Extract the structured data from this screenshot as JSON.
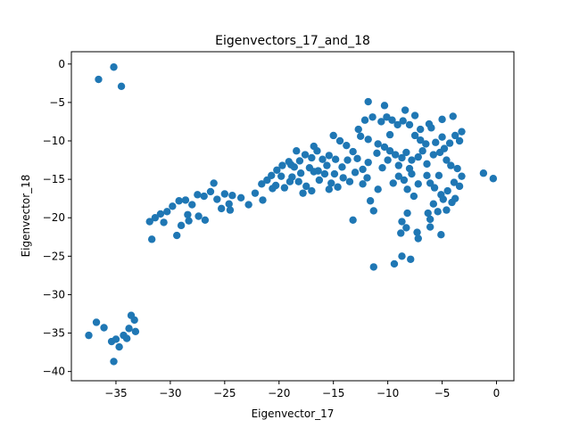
{
  "chart_data": {
    "type": "scatter",
    "title": "Eigenvectors_17_and_18",
    "xlabel": "Eigenvector_17",
    "ylabel": "Eigenvector_18",
    "xlim": [
      -39.1,
      1.6
    ],
    "ylim": [
      -41.2,
      1.6
    ],
    "xticks": [
      -35,
      -30,
      -25,
      -20,
      -15,
      -10,
      -5,
      0
    ],
    "yticks": [
      0,
      -5,
      -10,
      -15,
      -20,
      -25,
      -30,
      -35,
      -40
    ],
    "grid": false,
    "legend": "none",
    "marker_color": "#1f77b4",
    "series": [
      {
        "points": [
          [
            -35.2,
            -0.4
          ],
          [
            -36.6,
            -2.0
          ],
          [
            -34.5,
            -2.9
          ],
          [
            -37.5,
            -35.3
          ],
          [
            -36.8,
            -33.6
          ],
          [
            -36.1,
            -34.3
          ],
          [
            -35.4,
            -36.1
          ],
          [
            -35.0,
            -35.8
          ],
          [
            -34.7,
            -36.8
          ],
          [
            -34.3,
            -35.3
          ],
          [
            -34.0,
            -35.7
          ],
          [
            -33.8,
            -34.4
          ],
          [
            -33.6,
            -32.7
          ],
          [
            -33.3,
            -33.3
          ],
          [
            -33.2,
            -34.8
          ],
          [
            -35.2,
            -38.7
          ],
          [
            -11.8,
            -4.9
          ],
          [
            -10.3,
            -5.4
          ],
          [
            -8.4,
            -6.0
          ],
          [
            -7.5,
            -6.7
          ],
          [
            -6.2,
            -7.8
          ],
          [
            -5.0,
            -7.2
          ],
          [
            -4.0,
            -6.8
          ],
          [
            -3.2,
            -8.8
          ],
          [
            -3.8,
            -9.3
          ],
          [
            -3.4,
            -10.0
          ],
          [
            -4.3,
            -10.3
          ],
          [
            -5.0,
            -9.5
          ],
          [
            -5.6,
            -10.2
          ],
          [
            -6.0,
            -8.3
          ],
          [
            -6.5,
            -10.4
          ],
          [
            -7.0,
            -9.9
          ],
          [
            -7.5,
            -9.3
          ],
          [
            -8.0,
            -7.9
          ],
          [
            -8.6,
            -7.4
          ],
          [
            -9.1,
            -7.9
          ],
          [
            -9.6,
            -7.3
          ],
          [
            -10.1,
            -6.9
          ],
          [
            -10.6,
            -7.5
          ],
          [
            -11.4,
            -6.9
          ],
          [
            -12.1,
            -7.3
          ],
          [
            -12.7,
            -8.5
          ],
          [
            -11.8,
            -9.8
          ],
          [
            -10.9,
            -10.4
          ],
          [
            -10.3,
            -10.8
          ],
          [
            -9.8,
            -11.3
          ],
          [
            -9.3,
            -11.8
          ],
          [
            -8.7,
            -12.2
          ],
          [
            -8.3,
            -11.5
          ],
          [
            -7.8,
            -12.5
          ],
          [
            -7.2,
            -12.1
          ],
          [
            -6.8,
            -11.3
          ],
          [
            -6.4,
            -13.0
          ],
          [
            -5.8,
            -11.8
          ],
          [
            -5.2,
            -11.5
          ],
          [
            -4.6,
            -12.5
          ],
          [
            -4.2,
            -13.2
          ],
          [
            -3.6,
            -13.6
          ],
          [
            -3.2,
            -14.6
          ],
          [
            -3.9,
            -15.4
          ],
          [
            -3.4,
            -15.9
          ],
          [
            -4.5,
            -16.5
          ],
          [
            -5.1,
            -17.0
          ],
          [
            -5.7,
            -16.1
          ],
          [
            -6.1,
            -15.5
          ],
          [
            -5.3,
            -14.5
          ],
          [
            -4.9,
            -17.6
          ],
          [
            -5.8,
            -18.2
          ],
          [
            -6.3,
            -19.4
          ],
          [
            -6.1,
            -20.2
          ],
          [
            -5.4,
            -19.2
          ],
          [
            -4.6,
            -19.0
          ],
          [
            -4.1,
            -18.0
          ],
          [
            -3.8,
            -17.5
          ],
          [
            -1.2,
            -14.2
          ],
          [
            -0.3,
            -14.9
          ],
          [
            -7.2,
            -15.6
          ],
          [
            -7.8,
            -14.3
          ],
          [
            -8.5,
            -15.1
          ],
          [
            -9.0,
            -14.6
          ],
          [
            -9.5,
            -15.5
          ],
          [
            -8.2,
            -16.3
          ],
          [
            -7.6,
            -17.2
          ],
          [
            -8.2,
            -19.4
          ],
          [
            -8.7,
            -20.5
          ],
          [
            -8.3,
            -21.3
          ],
          [
            -8.8,
            -22.0
          ],
          [
            -7.3,
            -21.9
          ],
          [
            -7.2,
            -22.7
          ],
          [
            -6.1,
            -21.2
          ],
          [
            -5.1,
            -22.2
          ],
          [
            -11.3,
            -26.4
          ],
          [
            -9.4,
            -26.0
          ],
          [
            -8.7,
            -25.0
          ],
          [
            -7.9,
            -25.4
          ],
          [
            -11.6,
            -17.8
          ],
          [
            -11.3,
            -19.1
          ],
          [
            -10.9,
            -16.3
          ],
          [
            -12.3,
            -15.6
          ],
          [
            -13.2,
            -20.3
          ],
          [
            -12.3,
            -13.7
          ],
          [
            -11.8,
            -12.8
          ],
          [
            -12.8,
            -12.3
          ],
          [
            -13.2,
            -11.4
          ],
          [
            -13.7,
            -12.5
          ],
          [
            -14.2,
            -13.4
          ],
          [
            -14.8,
            -12.4
          ],
          [
            -15.4,
            -11.9
          ],
          [
            -16.0,
            -12.4
          ],
          [
            -16.5,
            -11.3
          ],
          [
            -17.0,
            -12.2
          ],
          [
            -17.6,
            -11.8
          ],
          [
            -18.1,
            -12.6
          ],
          [
            -18.6,
            -13.4
          ],
          [
            -19.1,
            -12.7
          ],
          [
            -19.7,
            -13.2
          ],
          [
            -20.2,
            -13.8
          ],
          [
            -20.7,
            -14.5
          ],
          [
            -21.1,
            -15.1
          ],
          [
            -21.6,
            -15.6
          ],
          [
            -20.3,
            -15.8
          ],
          [
            -19.5,
            -16.1
          ],
          [
            -18.8,
            -14.7
          ],
          [
            -18.2,
            -15.3
          ],
          [
            -17.5,
            -15.9
          ],
          [
            -17.0,
            -16.5
          ],
          [
            -16.3,
            -15.1
          ],
          [
            -15.8,
            -14.3
          ],
          [
            -15.2,
            -15.5
          ],
          [
            -14.6,
            -16.0
          ],
          [
            -14.1,
            -14.8
          ],
          [
            -13.5,
            -15.3
          ],
          [
            -13.0,
            -14.1
          ],
          [
            -15.6,
            -13.2
          ],
          [
            -16.4,
            -13.9
          ],
          [
            -17.2,
            -13.5
          ],
          [
            -18.0,
            -14.2
          ],
          [
            -18.9,
            -13.1
          ],
          [
            -19.8,
            -14.6
          ],
          [
            -20.6,
            -16.2
          ],
          [
            -21.5,
            -17.7
          ],
          [
            -22.2,
            -16.8
          ],
          [
            -22.8,
            -18.3
          ],
          [
            -23.5,
            -17.4
          ],
          [
            -24.3,
            -17.1
          ],
          [
            -25.0,
            -16.9
          ],
          [
            -24.6,
            -18.2
          ],
          [
            -25.7,
            -17.6
          ],
          [
            -26.3,
            -16.6
          ],
          [
            -26.9,
            -17.2
          ],
          [
            -25.3,
            -18.8
          ],
          [
            -24.5,
            -19.0
          ],
          [
            -26.0,
            -15.5
          ],
          [
            -27.5,
            -17.0
          ],
          [
            -28.0,
            -18.3
          ],
          [
            -28.6,
            -17.7
          ],
          [
            -29.2,
            -17.8
          ],
          [
            -29.8,
            -18.5
          ],
          [
            -30.3,
            -19.2
          ],
          [
            -30.9,
            -19.5
          ],
          [
            -31.4,
            -20.0
          ],
          [
            -31.9,
            -20.5
          ],
          [
            -31.7,
            -22.8
          ],
          [
            -29.4,
            -22.3
          ],
          [
            -28.3,
            -20.4
          ],
          [
            -27.4,
            -19.8
          ],
          [
            -26.8,
            -20.3
          ],
          [
            -30.6,
            -20.6
          ],
          [
            -29.0,
            -21.0
          ],
          [
            -28.4,
            -19.6
          ],
          [
            -12.5,
            -9.4
          ],
          [
            -13.8,
            -10.6
          ],
          [
            -14.4,
            -10.0
          ],
          [
            -15.0,
            -9.3
          ],
          [
            -10.0,
            -12.5
          ],
          [
            -9.0,
            -13.2
          ],
          [
            -8.0,
            -13.6
          ],
          [
            -11.0,
            -11.6
          ],
          [
            -14.9,
            -14.3
          ],
          [
            -16.8,
            -14.0
          ],
          [
            -19.0,
            -15.3
          ],
          [
            -17.8,
            -16.8
          ],
          [
            -15.4,
            -16.3
          ],
          [
            -18.4,
            -11.3
          ],
          [
            -16.8,
            -10.7
          ],
          [
            -10.5,
            -13.5
          ],
          [
            -7.0,
            -8.5
          ],
          [
            -9.8,
            -9.2
          ],
          [
            -4.8,
            -11.0
          ],
          [
            -6.4,
            -14.5
          ],
          [
            -11.9,
            -14.8
          ]
        ]
      }
    ]
  }
}
